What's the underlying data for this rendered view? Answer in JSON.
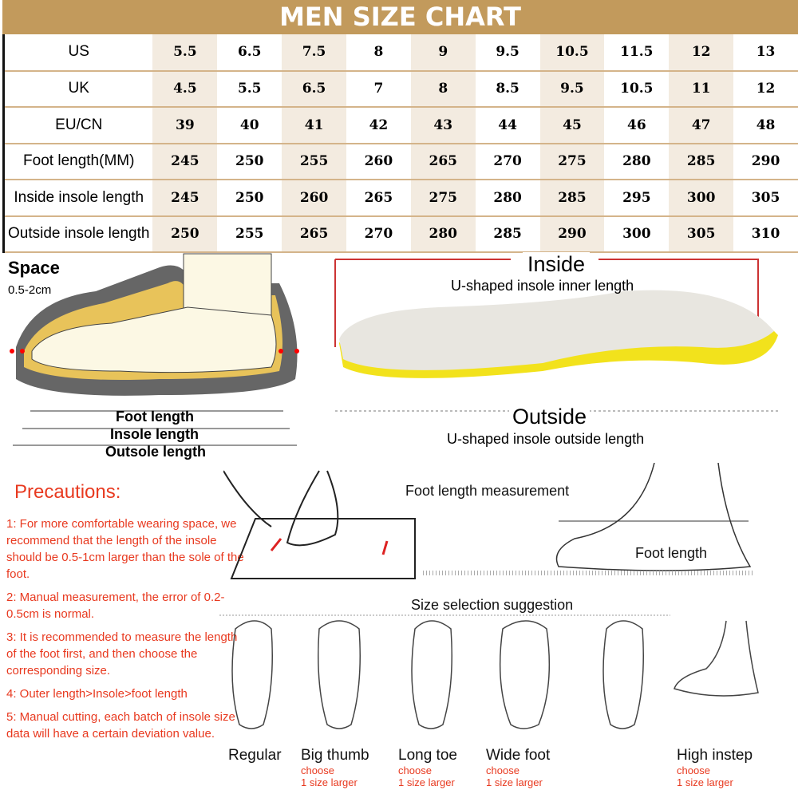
{
  "title": "MEN SIZE CHART",
  "table": {
    "rows": [
      {
        "label": "US",
        "values": [
          "5.5",
          "6.5",
          "7.5",
          "8",
          "9",
          "9.5",
          "10.5",
          "11.5",
          "12",
          "13"
        ]
      },
      {
        "label": "UK",
        "values": [
          "4.5",
          "5.5",
          "6.5",
          "7",
          "8",
          "8.5",
          "9.5",
          "10.5",
          "11",
          "12"
        ]
      },
      {
        "label": "EU/CN",
        "values": [
          "39",
          "40",
          "41",
          "42",
          "43",
          "44",
          "45",
          "46",
          "47",
          "48"
        ]
      },
      {
        "label": "Foot length(MM)",
        "values": [
          "245",
          "250",
          "255",
          "260",
          "265",
          "270",
          "275",
          "280",
          "285",
          "290"
        ]
      },
      {
        "label": "Inside insole length",
        "values": [
          "245",
          "250",
          "260",
          "265",
          "275",
          "280",
          "285",
          "295",
          "300",
          "305"
        ]
      },
      {
        "label": "Outside insole length",
        "values": [
          "250",
          "255",
          "265",
          "270",
          "280",
          "285",
          "290",
          "300",
          "305",
          "310"
        ]
      }
    ]
  },
  "shoe": {
    "space": "Space",
    "space_range": "0.5-2cm",
    "foot_length": "Foot length",
    "insole_length": "Insole length",
    "outsole_length": "Outsole length"
  },
  "insole": {
    "inside": "Inside",
    "inside_sub": "U-shaped insole inner length",
    "outside": "Outside",
    "outside_sub": "U-shaped insole outside length"
  },
  "precautions": {
    "title": "Precautions:",
    "items": [
      "1: For more comfortable wearing space, we recommend that the length of the insole should be 0.5-1cm larger than the sole of the foot.",
      "2: Manual measurement, the error of 0.2-0.5cm is normal.",
      "3: It is recommended to measure the length of the foot first, and then choose  the corresponding size.",
      "4: Outer length>Insole>foot length",
      "5: Manual cutting, each batch of insole size data will have a certain deviation value."
    ]
  },
  "measurement": {
    "title": "Foot length measurement",
    "foot_length": "Foot length"
  },
  "suggestion": {
    "title": "Size selection suggestion",
    "types": [
      {
        "name": "Regular",
        "note1": "",
        "note2": ""
      },
      {
        "name": "Big thumb",
        "note1": "choose",
        "note2": "1 size larger"
      },
      {
        "name": "Long toe",
        "note1": "choose",
        "note2": "1 size larger"
      },
      {
        "name": "Wide foot",
        "note1": "choose",
        "note2": "1 size larger"
      },
      {
        "name": "",
        "note1": "",
        "note2": ""
      },
      {
        "name": "High instep",
        "note1": "choose",
        "note2": "1 size larger"
      }
    ]
  },
  "colors": {
    "gold": "#c29a5c",
    "shade": "#f3ebe0",
    "red": "#e8391f",
    "insole_yellow": "#f2e21c"
  }
}
